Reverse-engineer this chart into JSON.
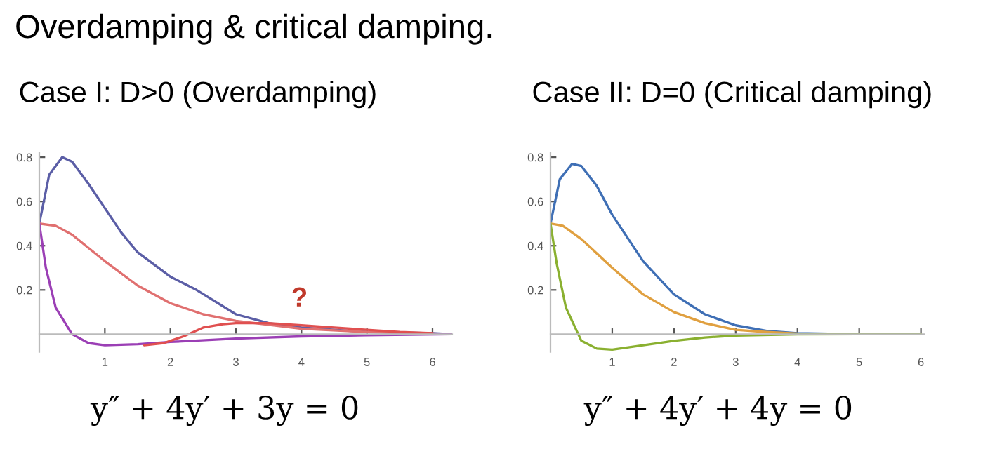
{
  "chart_data": [
    {
      "type": "line",
      "title": "Case I: D>0 (Overdamping)",
      "xlabel": "y″ + 4y′ + 3y = 0",
      "annotations": [
        "Overdamping & critical damping.",
        "?"
      ],
      "xlim": [
        0,
        6.3
      ],
      "ylim": [
        -0.08,
        0.82
      ],
      "xticks": [
        1,
        2,
        3,
        4,
        5,
        6
      ],
      "yticks": [
        0.2,
        0.4,
        0.6,
        0.8
      ],
      "grid": false,
      "legend": false,
      "series": [
        {
          "color": "#5b5ea6",
          "x": [
            0,
            0.15,
            0.35,
            0.5,
            0.75,
            1,
            1.25,
            1.5,
            2,
            2.4,
            3,
            3.5,
            4,
            5,
            6,
            6.3
          ],
          "values": [
            0.5,
            0.72,
            0.8,
            0.78,
            0.68,
            0.57,
            0.46,
            0.37,
            0.26,
            0.2,
            0.09,
            0.05,
            0.03,
            0.01,
            0.005,
            0
          ]
        },
        {
          "color": "#e07070",
          "x": [
            0,
            0.25,
            0.5,
            1,
            1.5,
            2,
            2.5,
            3,
            4,
            5,
            6,
            6.3
          ],
          "values": [
            0.5,
            0.49,
            0.45,
            0.33,
            0.22,
            0.14,
            0.09,
            0.06,
            0.025,
            0.01,
            0.003,
            0
          ]
        },
        {
          "color": "#9b3fb5",
          "x": [
            0,
            0.1,
            0.25,
            0.5,
            0.75,
            1,
            1.5,
            2,
            3,
            4,
            5,
            6.3
          ],
          "values": [
            0.5,
            0.3,
            0.12,
            0.0,
            -0.04,
            -0.05,
            -0.045,
            -0.035,
            -0.02,
            -0.01,
            -0.005,
            0
          ]
        },
        {
          "color": "#e05050",
          "x": [
            1.6,
            1.9,
            2.2,
            2.5,
            2.8,
            3,
            3.5,
            4,
            4.5,
            5,
            5.5,
            6
          ],
          "values": [
            -0.05,
            -0.04,
            -0.01,
            0.03,
            0.045,
            0.05,
            0.05,
            0.04,
            0.03,
            0.02,
            0.01,
            0.005
          ]
        }
      ]
    },
    {
      "type": "line",
      "title": "Case II: D=0 (Critical damping)",
      "xlabel": "y″ + 4y′ + 4y = 0",
      "xlim": [
        0,
        6.05
      ],
      "ylim": [
        -0.08,
        0.82
      ],
      "xticks": [
        1,
        2,
        3,
        4,
        5,
        6
      ],
      "yticks": [
        0.2,
        0.4,
        0.6,
        0.8
      ],
      "grid": false,
      "legend": false,
      "series": [
        {
          "color": "#3f6fb5",
          "x": [
            0,
            0.15,
            0.35,
            0.5,
            0.75,
            1,
            1.5,
            2,
            2.5,
            3,
            3.5,
            4,
            5,
            6
          ],
          "values": [
            0.5,
            0.7,
            0.77,
            0.76,
            0.67,
            0.54,
            0.33,
            0.18,
            0.09,
            0.04,
            0.015,
            0.005,
            0,
            0
          ]
        },
        {
          "color": "#e0a040",
          "x": [
            0,
            0.2,
            0.5,
            1,
            1.5,
            2,
            2.5,
            3,
            3.5,
            4,
            5,
            6
          ],
          "values": [
            0.5,
            0.49,
            0.43,
            0.3,
            0.18,
            0.1,
            0.05,
            0.02,
            0.01,
            0.003,
            0,
            0
          ]
        },
        {
          "color": "#8ab030",
          "x": [
            0,
            0.1,
            0.25,
            0.5,
            0.75,
            1,
            1.5,
            2,
            2.5,
            3,
            4,
            5,
            6
          ],
          "values": [
            0.5,
            0.32,
            0.12,
            -0.03,
            -0.065,
            -0.07,
            -0.05,
            -0.03,
            -0.015,
            -0.006,
            -0.001,
            0,
            0
          ]
        }
      ]
    }
  ]
}
